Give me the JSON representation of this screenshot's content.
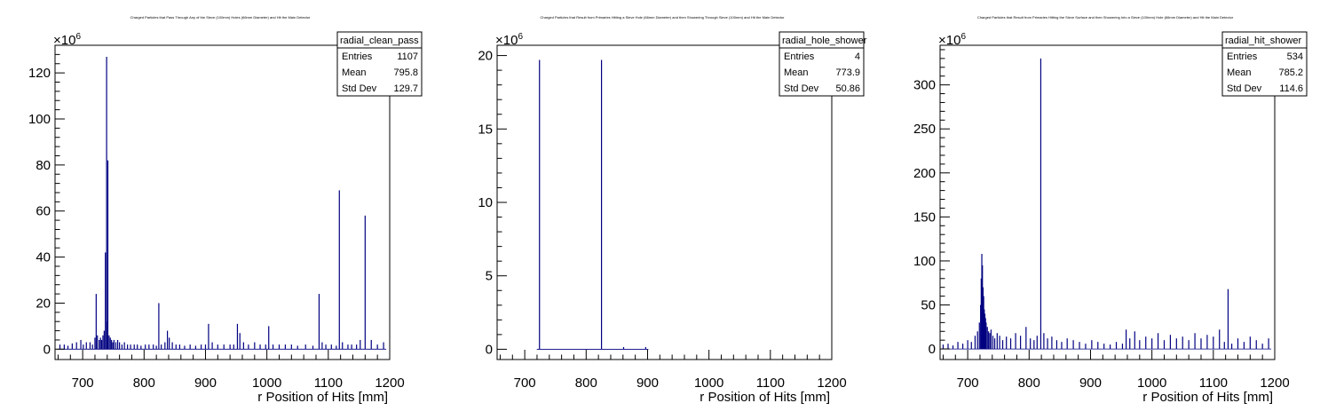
{
  "chart_data": [
    {
      "type": "bar",
      "title": "Charged Particles that Pass Through Any of the Sieve (100mm) Holes (66mm Diameter) and Hit the Main Detector",
      "xlabel": "r Position of Hits [mm]",
      "ylabel": "",
      "y_exponent_base": "×10",
      "y_exponent_power": "6",
      "xlim": [
        655,
        1200
      ],
      "ylim": [
        -4.5,
        132
      ],
      "xticks": [
        700,
        800,
        900,
        1000,
        1100,
        1200
      ],
      "yticks": [
        0,
        20,
        40,
        60,
        80,
        100,
        120
      ],
      "stats": {
        "name": "radial_clean_pass",
        "rows": [
          {
            "label": "Entries",
            "value": "1107"
          },
          {
            "label": "Mean",
            "value": "795.8"
          },
          {
            "label": "Std Dev",
            "value": "129.7"
          }
        ]
      },
      "bar_color": "#000080",
      "x": [
        663,
        670,
        676,
        683,
        690,
        697,
        701,
        706,
        712,
        716,
        720,
        722,
        724,
        727,
        729,
        731,
        733,
        735,
        737,
        739,
        740,
        741,
        743,
        745,
        747,
        749,
        751,
        754,
        757,
        760,
        764,
        768,
        773,
        778,
        784,
        789,
        795,
        802,
        808,
        815,
        820,
        824,
        828,
        834,
        838,
        841,
        846,
        852,
        858,
        866,
        875,
        884,
        893,
        900,
        905,
        911,
        920,
        930,
        940,
        946,
        952,
        956,
        962,
        970,
        980,
        989,
        998,
        1003,
        1010,
        1020,
        1030,
        1040,
        1050,
        1063,
        1075,
        1085,
        1090,
        1096,
        1105,
        1113,
        1118,
        1123,
        1132,
        1138,
        1146,
        1152,
        1160,
        1170,
        1180,
        1190
      ],
      "values": [
        2,
        2,
        1.5,
        2.5,
        3,
        4,
        2,
        3,
        3,
        2,
        5,
        24,
        6,
        4,
        5,
        4,
        6,
        8,
        42,
        127,
        12,
        82,
        6,
        5,
        4,
        3,
        4,
        3,
        4,
        3,
        2,
        3,
        2,
        2,
        2,
        2,
        1.5,
        2,
        2,
        2,
        1.5,
        20,
        2,
        3,
        8,
        5,
        3,
        2,
        2,
        1.5,
        2,
        1.5,
        2,
        2,
        11,
        3,
        2,
        2,
        2,
        2,
        11,
        7,
        3,
        2,
        3,
        2,
        2,
        10,
        2,
        2,
        2,
        2,
        1.5,
        2,
        1.5,
        24,
        3,
        2,
        2,
        1.5,
        69,
        3,
        2,
        2,
        2,
        4,
        58,
        4,
        2,
        3
      ]
    },
    {
      "type": "bar",
      "title": "Charged Particles that Result from Primaries Hitting a Sieve Hole (66mm Diameter) and then Showering Through Sieve (100mm) and Hit the Main Detector",
      "xlabel": "r Position of Hits [mm]",
      "ylabel": "",
      "y_exponent_base": "×10",
      "y_exponent_power": "6",
      "xlim": [
        655,
        1200
      ],
      "ylim": [
        -0.7,
        20.7
      ],
      "xticks": [
        700,
        800,
        900,
        1000,
        1100,
        1200
      ],
      "yticks": [
        0,
        5,
        10,
        15,
        20
      ],
      "stats": {
        "name": "radial_hole_shower",
        "rows": [
          {
            "label": "Entries",
            "value": "4"
          },
          {
            "label": "Mean",
            "value": "773.9"
          },
          {
            "label": "Std Dev",
            "value": "50.86"
          }
        ]
      },
      "bar_color": "#000080",
      "x": [
        724,
        825,
        861,
        897
      ],
      "values": [
        19.7,
        19.7,
        0.15,
        0.15
      ]
    },
    {
      "type": "bar",
      "title": "Charged Particles that Result from Primaries Hitting the Sieve Surface and then Showering Into a Sieve (100mm) Hole (66mm Diameter) and Hit the Main Detector",
      "xlabel": "r Position of Hits [mm]",
      "ylabel": "",
      "y_exponent_base": "×10",
      "y_exponent_power": "6",
      "xlim": [
        655,
        1200
      ],
      "ylim": [
        -12,
        345
      ],
      "xticks": [
        700,
        800,
        900,
        1000,
        1100,
        1200
      ],
      "yticks": [
        0,
        50,
        100,
        150,
        200,
        250,
        300
      ],
      "stats": {
        "name": "radial_hit_shower",
        "rows": [
          {
            "label": "Entries",
            "value": "534"
          },
          {
            "label": "Mean",
            "value": "785.2"
          },
          {
            "label": "Std Dev",
            "value": "114.6"
          }
        ]
      },
      "bar_color": "#000080",
      "x": [
        660,
        668,
        676,
        684,
        692,
        700,
        706,
        712,
        716,
        719,
        721,
        722,
        723,
        724,
        725,
        726,
        727,
        728,
        729,
        730,
        732,
        734,
        736,
        738,
        741,
        744,
        748,
        752,
        757,
        763,
        770,
        778,
        786,
        795,
        802,
        808,
        813,
        819,
        824,
        830,
        837,
        845,
        853,
        862,
        872,
        882,
        892,
        902,
        912,
        922,
        932,
        942,
        952,
        958,
        964,
        972,
        980,
        990,
        1000,
        1010,
        1020,
        1030,
        1040,
        1050,
        1060,
        1070,
        1080,
        1090,
        1100,
        1110,
        1118,
        1124,
        1130,
        1140,
        1150,
        1160,
        1170,
        1180,
        1190
      ],
      "values": [
        5,
        6,
        4,
        8,
        6,
        10,
        8,
        15,
        20,
        30,
        50,
        80,
        108,
        95,
        70,
        60,
        45,
        40,
        35,
        30,
        25,
        20,
        18,
        22,
        15,
        12,
        18,
        15,
        10,
        14,
        12,
        18,
        15,
        25,
        12,
        10,
        15,
        330,
        18,
        12,
        14,
        10,
        8,
        12,
        10,
        8,
        6,
        10,
        8,
        6,
        5,
        8,
        6,
        22,
        12,
        20,
        10,
        14,
        12,
        18,
        10,
        16,
        12,
        14,
        10,
        18,
        12,
        16,
        14,
        22,
        8,
        68,
        6,
        12,
        8,
        14,
        10,
        6,
        12
      ]
    }
  ]
}
